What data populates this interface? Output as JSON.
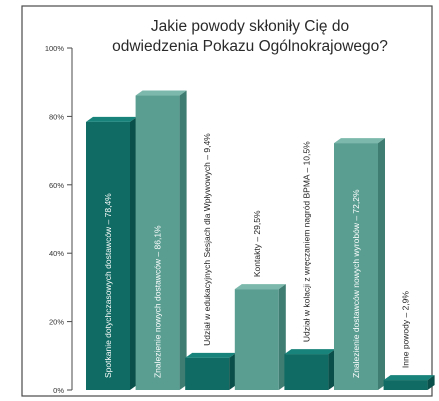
{
  "chart_data": {
    "type": "bar",
    "title_lines": [
      "Jakie powody skłoniły Cię do",
      "odwiedzenia Pokazu Ogólnokrajowego?"
    ],
    "categories": [
      "Spotkanie dotychczasowych dostawców – 78,4%",
      "Znalezienie nowych dostawców – 86,1%",
      "Udział w edukacyjnych Sesjach dla Wpływowych – 9,4%",
      "Kontakty – 29,5%",
      "Udział w kolacji z wręczaniem nagród BPMA – 10,5%",
      "Znalezienie dostawców nowych wyrobów – 72,2%",
      "Inne powody – 2,9%"
    ],
    "values": [
      78.4,
      86.1,
      9.4,
      29.5,
      10.5,
      72.2,
      2.9
    ],
    "ylim": [
      0,
      100
    ],
    "yticks": [
      "0%",
      "20%",
      "40%",
      "60%",
      "80%",
      "100%"
    ],
    "xlabel": "",
    "ylabel": "",
    "colors": [
      "#0f6b63",
      "#5a9e92",
      "#0f6b63",
      "#5a9e92",
      "#0f6b63",
      "#5a9e92",
      "#0f6b63"
    ],
    "grid": false
  }
}
